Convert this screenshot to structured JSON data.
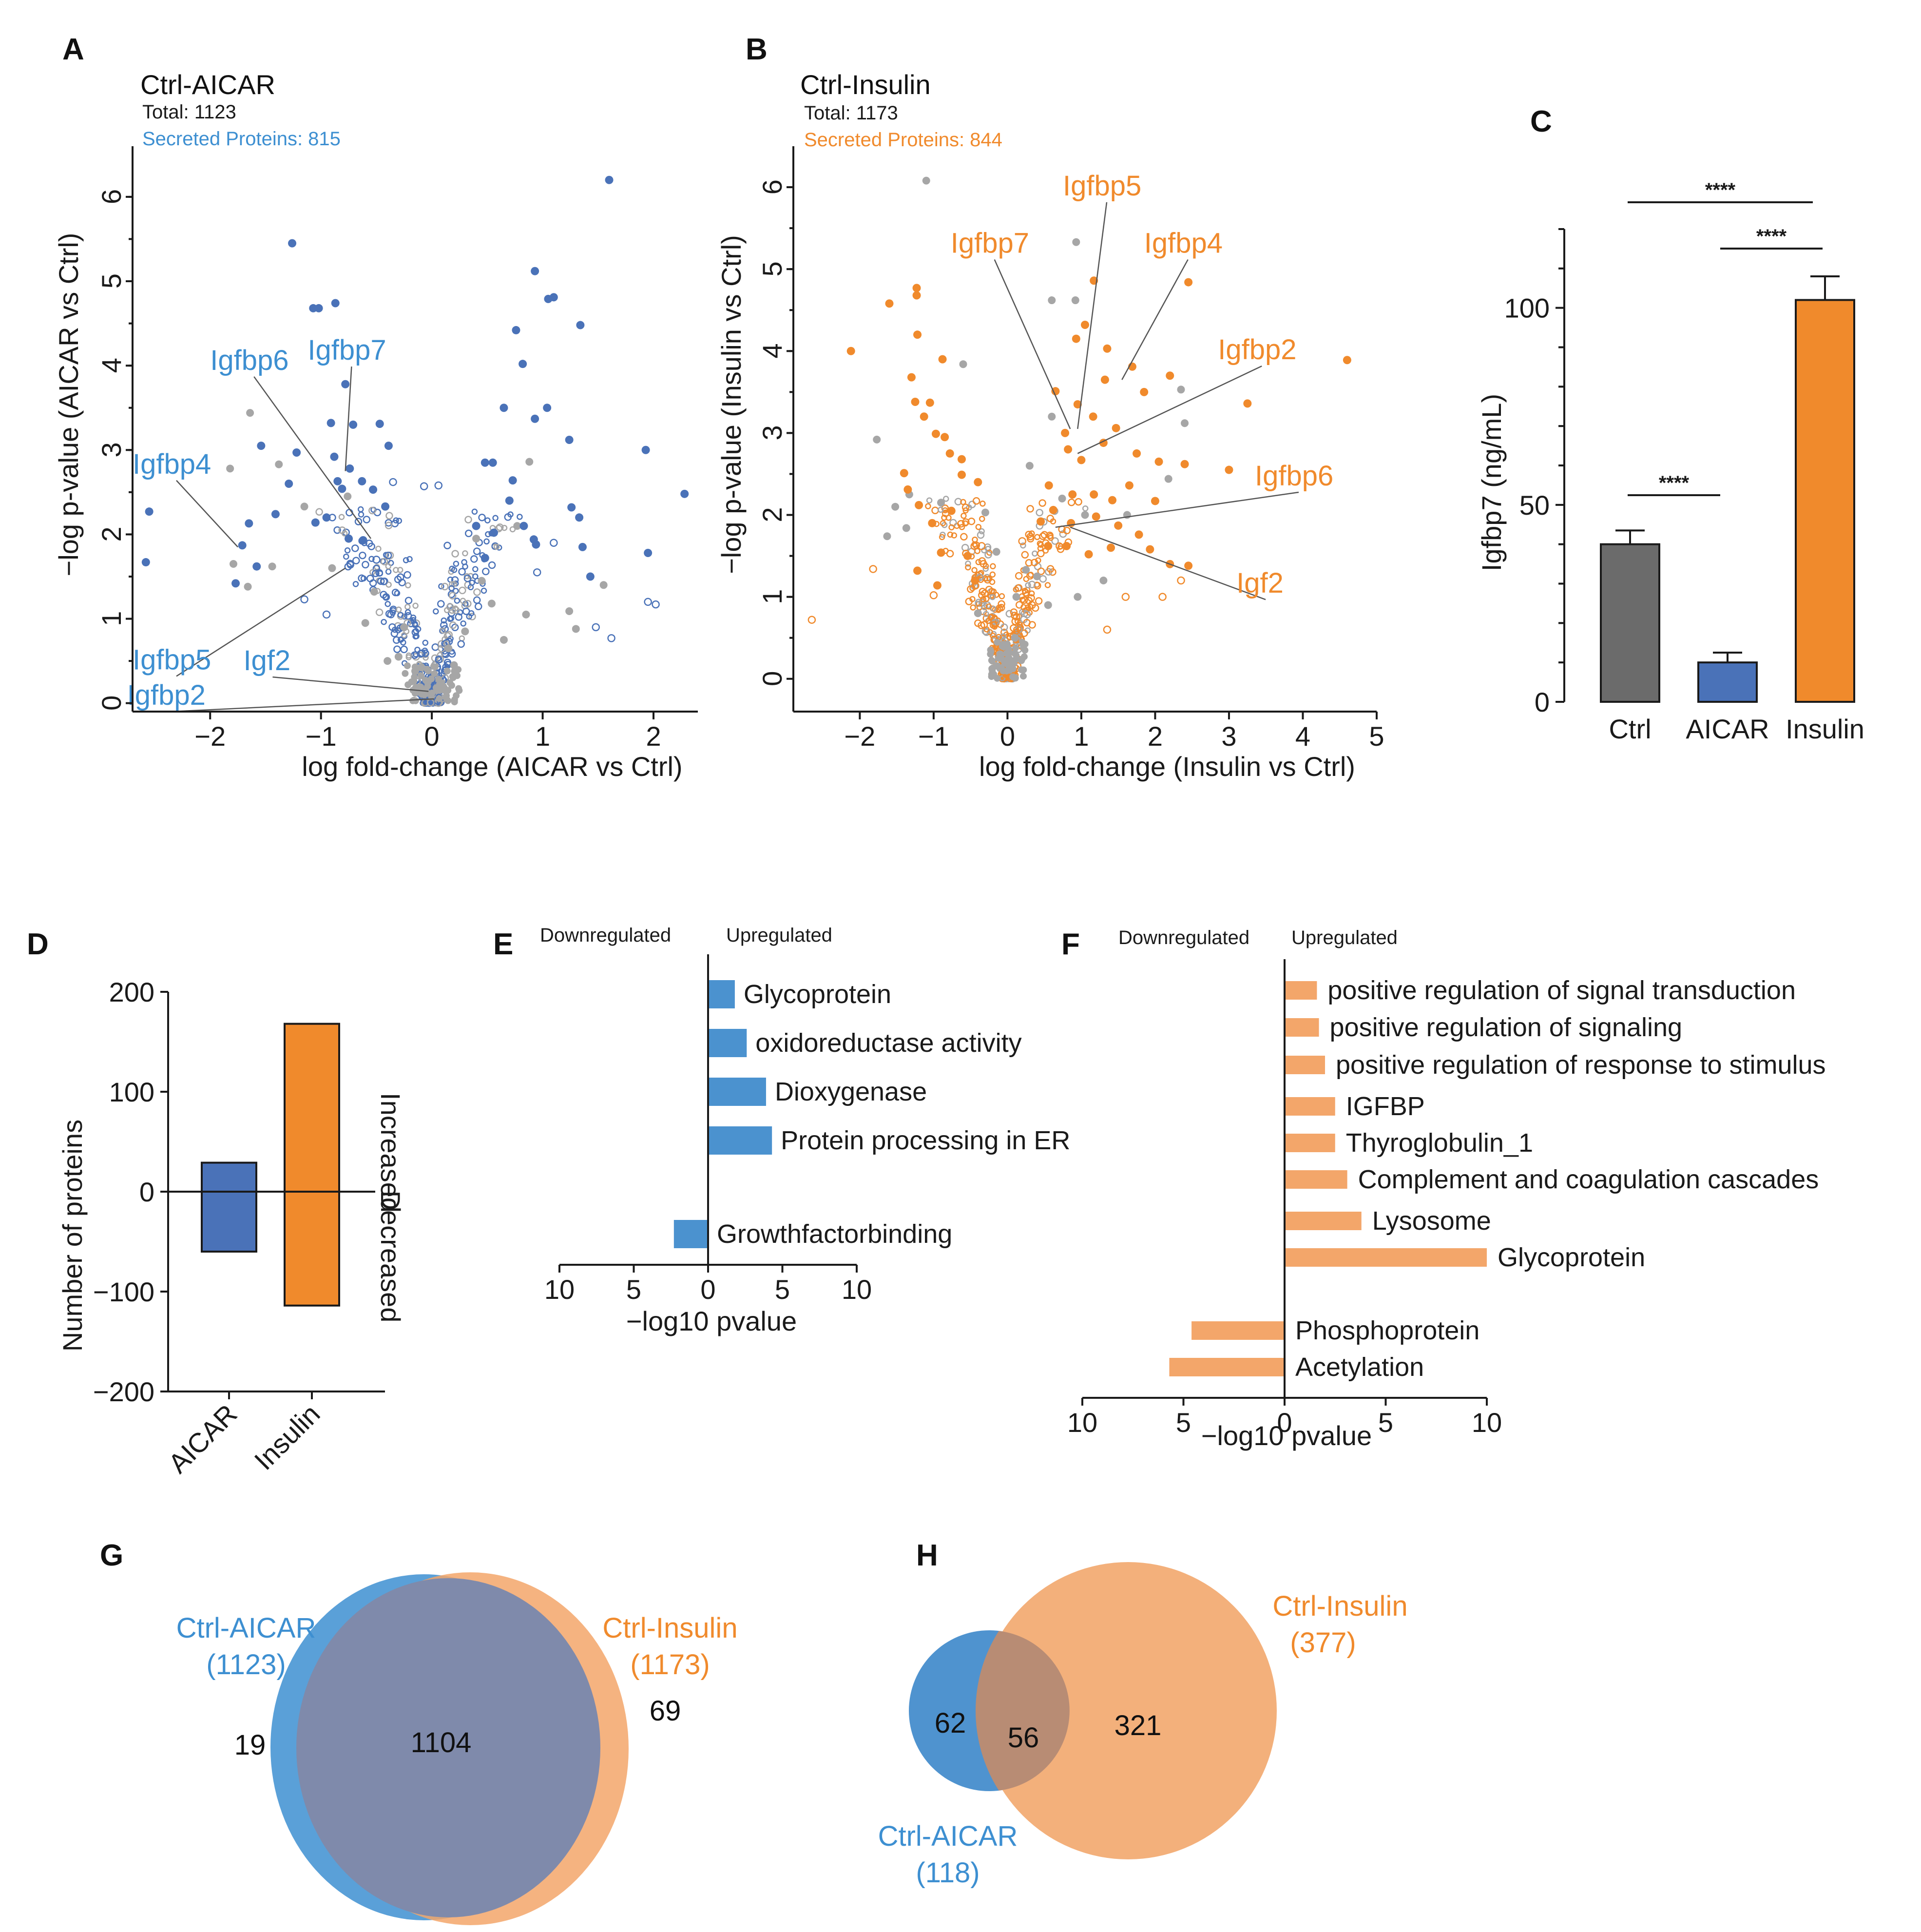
{
  "colors": {
    "aicar": "#4a72b8",
    "aicar_light": "#3d8fd1",
    "insulin": "#f08a2c",
    "insulin_light": "#f3a66a",
    "ctrl": "#6b6b6b",
    "grey_point": "#a6a6a6",
    "overlap_g": "#7f8aab",
    "overlap_h": "#b88c74"
  },
  "panels": {
    "A": "A",
    "B": "B",
    "C": "C",
    "D": "D",
    "E": "E",
    "F": "F",
    "G": "G",
    "H": "H"
  },
  "chart_data": [
    {
      "panel": "A",
      "type": "scatter",
      "title": "Ctrl-AICAR",
      "total": "Total: 1123",
      "secreted": "Secreted Proteins: 815",
      "xlabel": "log fold-change (AICAR vs Ctrl)",
      "ylabel": "−log p-value (AICAR vs Ctrl)",
      "xlim": [
        -2.7,
        2.4
      ],
      "ylim": [
        -0.1,
        6.6
      ],
      "xticks": [
        -2,
        -1,
        0,
        1,
        2
      ],
      "xtick_labels": [
        "−2",
        "−1",
        "0",
        "1",
        "2"
      ],
      "yticks": [
        0,
        1,
        2,
        3,
        4,
        5,
        6
      ],
      "ytick_labels": [
        "0",
        "1",
        "2",
        "3",
        "4",
        "5",
        "6"
      ],
      "highlighted_points": [
        [
          -1.26,
          5.45
        ],
        [
          -1.07,
          4.68
        ],
        [
          -1.02,
          4.68
        ],
        [
          -0.87,
          4.74
        ],
        [
          -0.78,
          3.78
        ],
        [
          -0.91,
          3.32
        ],
        [
          -0.71,
          3.3
        ],
        [
          -0.47,
          3.31
        ],
        [
          -0.39,
          3.05
        ],
        [
          -1.54,
          3.05
        ],
        [
          -1.22,
          2.97
        ],
        [
          -0.88,
          2.92
        ],
        [
          -0.85,
          2.63
        ],
        [
          -0.74,
          2.78
        ],
        [
          -0.63,
          2.63
        ],
        [
          -0.81,
          2.54
        ],
        [
          -1.29,
          2.6
        ],
        [
          -1.41,
          2.24
        ],
        [
          -1.05,
          2.14
        ],
        [
          -0.95,
          2.2
        ],
        [
          -0.75,
          1.95
        ],
        [
          -0.62,
          1.93
        ],
        [
          -1.65,
          2.13
        ],
        [
          -1.71,
          1.87
        ],
        [
          -2.55,
          2.27
        ],
        [
          -2.58,
          1.67
        ],
        [
          -1.58,
          1.62
        ],
        [
          -1.77,
          1.42
        ],
        [
          -0.53,
          2.53
        ],
        [
          -0.42,
          2.33
        ],
        [
          1.6,
          6.2
        ],
        [
          0.93,
          5.12
        ],
        [
          1.05,
          4.79
        ],
        [
          1.1,
          4.81
        ],
        [
          1.34,
          4.48
        ],
        [
          0.76,
          4.42
        ],
        [
          0.82,
          4.02
        ],
        [
          0.65,
          3.5
        ],
        [
          1.04,
          3.5
        ],
        [
          0.93,
          3.37
        ],
        [
          1.24,
          3.12
        ],
        [
          0.48,
          2.85
        ],
        [
          0.55,
          2.85
        ],
        [
          0.73,
          2.64
        ],
        [
          0.7,
          2.4
        ],
        [
          1.26,
          2.32
        ],
        [
          1.33,
          2.2
        ],
        [
          0.83,
          2.1
        ],
        [
          0.56,
          2.02
        ],
        [
          0.92,
          1.94
        ],
        [
          0.94,
          1.88
        ],
        [
          1.36,
          1.85
        ],
        [
          1.43,
          1.5
        ],
        [
          1.93,
          3.0
        ],
        [
          2.28,
          2.48
        ],
        [
          1.95,
          1.78
        ],
        [
          0.4,
          2.1
        ],
        [
          0.48,
          1.72
        ]
      ],
      "grey_points": [
        [
          -1.64,
          3.44
        ],
        [
          -1.82,
          2.78
        ],
        [
          -1.38,
          2.83
        ],
        [
          -1.15,
          2.33
        ],
        [
          -0.76,
          2.45
        ],
        [
          -1.44,
          1.62
        ],
        [
          -1.66,
          1.38
        ],
        [
          -1.79,
          1.65
        ],
        [
          -0.52,
          1.32
        ],
        [
          -0.3,
          0.55
        ],
        [
          0.4,
          1.95
        ],
        [
          0.77,
          2.1
        ],
        [
          0.88,
          2.86
        ],
        [
          1.24,
          1.09
        ],
        [
          1.3,
          0.88
        ],
        [
          0.54,
          1.18
        ],
        [
          -0.15,
          0.38
        ],
        [
          0.2,
          0.45
        ],
        [
          -0.05,
          0.12
        ],
        [
          0.1,
          0.2
        ],
        [
          0.65,
          0.75
        ],
        [
          0.85,
          1.05
        ],
        [
          -0.6,
          0.95
        ],
        [
          0.3,
          0.85
        ],
        [
          -0.9,
          1.6
        ],
        [
          1.55,
          1.4
        ],
        [
          0.45,
          1.45
        ],
        [
          -0.25,
          0.9
        ],
        [
          0.15,
          0.65
        ],
        [
          -0.4,
          0.5
        ]
      ],
      "open_points": [
        [
          -0.35,
          2.62
        ],
        [
          -0.07,
          2.57
        ],
        [
          0.06,
          2.58
        ],
        [
          0.95,
          1.55
        ],
        [
          1.1,
          1.9
        ],
        [
          1.95,
          1.2
        ],
        [
          2.02,
          1.17
        ],
        [
          1.62,
          0.77
        ],
        [
          1.48,
          0.9
        ],
        [
          -1.15,
          1.23
        ],
        [
          -0.95,
          1.05
        ],
        [
          -0.5,
          1.7
        ]
      ],
      "open_cloud": {
        "n": 430,
        "x_left_a": -0.95,
        "x_right_a": 0.72,
        "x_scale": 0.55,
        "y_max": 2.3
      },
      "genes": [
        {
          "name": "Igfbp6",
          "px": -0.55,
          "py": 1.95,
          "lx": -2.0,
          "ly": 3.95
        },
        {
          "name": "Igfbp7",
          "px": -0.78,
          "py": 2.75,
          "lx": -1.12,
          "ly": 4.07
        },
        {
          "name": "Igfbp4",
          "px": -1.75,
          "py": 1.85,
          "lx": -2.7,
          "ly": 2.72
        },
        {
          "name": "Igfbp5",
          "px": -0.78,
          "py": 1.6,
          "lx": -2.7,
          "ly": 0.4
        },
        {
          "name": "Igf2",
          "px": -0.03,
          "py": 0.14,
          "lx": -1.7,
          "ly": 0.39
        },
        {
          "name": "Igfbp2",
          "px": 0.02,
          "py": 0.05,
          "lx": -2.75,
          "ly": -0.02
        }
      ]
    },
    {
      "panel": "B",
      "type": "scatter",
      "title": "Ctrl-Insulin",
      "total": "Total: 1173",
      "secreted": "Secreted Proteins: 844",
      "xlabel": "log fold-change (Insulin vs Ctrl)",
      "ylabel": "−log p-value (Insulin vs Ctrl)",
      "xlim": [
        -2.9,
        5.0
      ],
      "ylim": [
        -0.4,
        6.5
      ],
      "xticks": [
        -2,
        -1,
        0,
        1,
        2,
        3,
        4,
        5
      ],
      "xtick_labels": [
        "−2",
        "−1",
        "0",
        "1",
        "2",
        "3",
        "4",
        "5"
      ],
      "yticks": [
        0,
        1,
        2,
        3,
        4,
        5,
        6
      ],
      "ytick_labels": [
        "0",
        "1",
        "2",
        "3",
        "4",
        "5",
        "6"
      ],
      "highlighted_points": [
        [
          -2.12,
          4.0
        ],
        [
          -1.6,
          4.58
        ],
        [
          -1.22,
          4.2
        ],
        [
          -1.23,
          4.68
        ],
        [
          -1.23,
          4.77
        ],
        [
          -1.3,
          3.68
        ],
        [
          -1.25,
          3.38
        ],
        [
          -1.05,
          3.37
        ],
        [
          -0.88,
          3.9
        ],
        [
          -1.13,
          3.2
        ],
        [
          -0.97,
          2.99
        ],
        [
          -0.85,
          2.95
        ],
        [
          -0.78,
          2.75
        ],
        [
          -0.62,
          2.68
        ],
        [
          -1.4,
          2.51
        ],
        [
          -1.35,
          2.31
        ],
        [
          -1.2,
          2.12
        ],
        [
          -1.02,
          1.9
        ],
        [
          -0.76,
          2.05
        ],
        [
          -0.9,
          1.54
        ],
        [
          -1.22,
          1.32
        ],
        [
          -0.95,
          1.14
        ],
        [
          -0.62,
          2.49
        ],
        [
          -0.4,
          2.4
        ],
        [
          -0.54,
          1.5
        ],
        [
          -0.44,
          1.2
        ],
        [
          4.6,
          3.89
        ],
        [
          2.45,
          4.84
        ],
        [
          1.17,
          4.86
        ],
        [
          1.05,
          4.32
        ],
        [
          0.93,
          4.15
        ],
        [
          1.35,
          4.03
        ],
        [
          1.69,
          3.81
        ],
        [
          1.32,
          3.65
        ],
        [
          2.2,
          3.7
        ],
        [
          1.85,
          3.5
        ],
        [
          3.25,
          3.36
        ],
        [
          0.65,
          3.51
        ],
        [
          0.95,
          3.35
        ],
        [
          1.16,
          3.2
        ],
        [
          1.47,
          3.06
        ],
        [
          0.78,
          3.0
        ],
        [
          0.82,
          2.8
        ],
        [
          1.0,
          2.67
        ],
        [
          1.3,
          2.88
        ],
        [
          1.75,
          2.75
        ],
        [
          2.05,
          2.65
        ],
        [
          2.4,
          2.62
        ],
        [
          3.0,
          2.55
        ],
        [
          0.56,
          2.36
        ],
        [
          0.88,
          2.25
        ],
        [
          1.17,
          2.25
        ],
        [
          1.42,
          2.18
        ],
        [
          1.65,
          2.36
        ],
        [
          2.0,
          2.17
        ],
        [
          0.62,
          2.06
        ],
        [
          0.86,
          1.9
        ],
        [
          1.2,
          1.98
        ],
        [
          1.5,
          1.87
        ],
        [
          1.78,
          1.76
        ],
        [
          1.93,
          1.58
        ],
        [
          2.2,
          1.4
        ],
        [
          2.45,
          1.38
        ],
        [
          0.8,
          1.62
        ],
        [
          1.1,
          1.52
        ],
        [
          1.4,
          1.6
        ],
        [
          0.45,
          1.92
        ],
        [
          0.55,
          1.62
        ]
      ],
      "grey_points": [
        [
          -1.1,
          6.08
        ],
        [
          0.93,
          5.33
        ],
        [
          0.6,
          4.62
        ],
        [
          0.92,
          4.62
        ],
        [
          -0.6,
          3.84
        ],
        [
          -1.77,
          2.92
        ],
        [
          -1.52,
          2.1
        ],
        [
          -1.33,
          2.25
        ],
        [
          -1.63,
          1.74
        ],
        [
          -1.37,
          1.84
        ],
        [
          -0.9,
          2.15
        ],
        [
          2.35,
          3.53
        ],
        [
          2.4,
          3.12
        ],
        [
          2.18,
          2.44
        ],
        [
          1.62,
          2.0
        ],
        [
          1.05,
          2.0
        ],
        [
          0.25,
          1.33
        ],
        [
          0.55,
          0.9
        ],
        [
          0.74,
          2.2
        ],
        [
          0.12,
          1.0
        ],
        [
          0.4,
          1.25
        ],
        [
          -0.3,
          2.03
        ],
        [
          -0.15,
          1.55
        ],
        [
          1.3,
          1.2
        ],
        [
          0.1,
          0.5
        ],
        [
          -0.1,
          0.3
        ],
        [
          0.95,
          1.0
        ],
        [
          -0.4,
          0.8
        ],
        [
          0.3,
          2.6
        ],
        [
          0.6,
          3.2
        ]
      ],
      "open_points": [
        [
          -2.65,
          0.72
        ],
        [
          -1.82,
          1.34
        ],
        [
          1.6,
          1.0
        ],
        [
          2.1,
          1.0
        ],
        [
          -0.35,
          1.62
        ],
        [
          0.2,
          1.68
        ],
        [
          0.33,
          0.9
        ],
        [
          -1.0,
          1.02
        ],
        [
          1.35,
          0.6
        ],
        [
          2.35,
          1.2
        ]
      ],
      "open_cloud": {
        "n": 430,
        "x_left_a": -1.05,
        "x_right_a": 0.95,
        "x_scale": 0.55,
        "y_max": 2.2
      },
      "genes": [
        {
          "name": "Igfbp5",
          "px": 0.95,
          "py": 3.05,
          "lx": 0.75,
          "ly": 5.9
        },
        {
          "name": "Igfbp7",
          "px": 0.85,
          "py": 3.05,
          "lx": -0.77,
          "ly": 5.2
        },
        {
          "name": "Igfbp4",
          "px": 1.55,
          "py": 3.65,
          "lx": 1.85,
          "ly": 5.2
        },
        {
          "name": "Igfbp2",
          "px": 0.95,
          "py": 2.75,
          "lx": 2.85,
          "ly": 3.9
        },
        {
          "name": "Igfbp6",
          "px": 0.65,
          "py": 1.85,
          "lx": 3.35,
          "ly": 2.36
        },
        {
          "name": "Igf2",
          "px": 0.85,
          "py": 1.85,
          "lx": 3.1,
          "ly": 1.05
        }
      ]
    },
    {
      "panel": "C",
      "type": "bar",
      "categories": [
        "Ctrl",
        "AICAR",
        "Insulin"
      ],
      "values": [
        40,
        10,
        102
      ],
      "errors": [
        3.5,
        2.5,
        6
      ],
      "ylabel": "Igfbp7 (ng/mL)",
      "ylim": [
        0,
        120
      ],
      "yticks": [
        0,
        50,
        100
      ],
      "significance": "****"
    },
    {
      "panel": "D",
      "type": "bar",
      "categories": [
        "AICAR",
        "Insulin"
      ],
      "series": [
        {
          "name": "Increased",
          "values": [
            29,
            168
          ]
        },
        {
          "name": "Decreased",
          "values": [
            -60,
            -114
          ]
        }
      ],
      "ylabel": "Number of proteins",
      "ylim": [
        -200,
        200
      ],
      "yticks": [
        200,
        100,
        0,
        -100,
        -200
      ],
      "ytick_labels": [
        "200",
        "100",
        "0",
        "−100",
        "−200"
      ],
      "side_labels": [
        "Increased",
        "Decreased"
      ]
    },
    {
      "panel": "E",
      "type": "bar",
      "orientation": "horizontal",
      "header_left": "Downregulated",
      "header_right": "Upregulated",
      "terms": [
        "Glycoprotein",
        "oxidoreductase activity",
        "Dioxygenase",
        "Protein processing in ER",
        "Growthfactorbinding"
      ],
      "values": [
        1.8,
        2.6,
        3.9,
        4.3,
        -2.3
      ],
      "xlabel": "−log10 pvalue",
      "xticks": [
        10,
        5,
        0,
        5,
        10
      ]
    },
    {
      "panel": "F",
      "type": "bar",
      "orientation": "horizontal",
      "header_left": "Downregulated",
      "header_right": "Upregulated",
      "terms": [
        "positive regulation of signal transduction",
        "positive regulation of signaling",
        "positive regulation of response to stimulus",
        "IGFBP",
        "Thyroglobulin_1",
        "Complement and coagulation cascades",
        "Lysosome",
        "Glycoprotein",
        "Phosphoprotein",
        "Acetylation"
      ],
      "values": [
        1.6,
        1.7,
        2.0,
        2.5,
        2.5,
        3.1,
        3.8,
        10.0,
        -4.6,
        -5.7
      ],
      "xlabel": "−log10 pvalue",
      "xticks": [
        10,
        5,
        0,
        5,
        10
      ]
    },
    {
      "panel": "G",
      "type": "venn",
      "sets": [
        {
          "label": "Ctrl-AICAR",
          "count_label": "(1123)",
          "total": 1123
        },
        {
          "label": "Ctrl-Insulin",
          "count_label": "(1173)",
          "total": 1173
        }
      ],
      "only_a": "19",
      "overlap": "1104",
      "only_b": "69"
    },
    {
      "panel": "H",
      "type": "venn",
      "sets": [
        {
          "label": "Ctrl-AICAR",
          "count_label": "(118)",
          "total": 118
        },
        {
          "label": "Ctrl-Insulin",
          "count_label": "(377)",
          "total": 377
        }
      ],
      "only_a": "62",
      "overlap": "56",
      "only_b": "321"
    }
  ]
}
